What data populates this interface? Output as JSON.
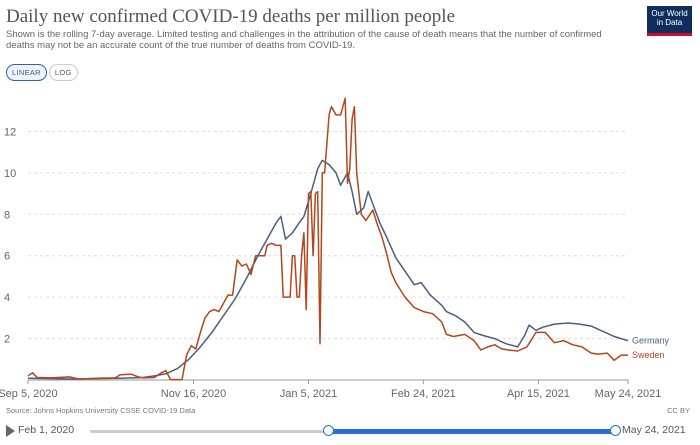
{
  "header": {
    "title": "Daily new confirmed COVID-19 deaths per million people",
    "subtitle": "Shown is the rolling 7-day average. Limited testing and challenges in the attribution of the cause of death means that the number of confirmed deaths may not be an accurate count of the true number of deaths from COVID-19.",
    "logo_line1": "Our World",
    "logo_line2": "in Data"
  },
  "controls": {
    "linear_label": "LINEAR",
    "log_label": "LOG"
  },
  "footer": {
    "source": "Source: Johns Hopkins University CSSE COVID-19 Data",
    "license": "CC BY"
  },
  "timeline": {
    "start_label": "Feb 1, 2020",
    "end_label": "May 24, 2021"
  },
  "colors": {
    "germany": "#4c5e7e",
    "sweden": "#b5451b",
    "grid": "#dddddd"
  },
  "chart_data": {
    "type": "line",
    "title": "Daily new confirmed COVID-19 deaths per million people",
    "xlabel": "",
    "ylabel": "",
    "ylim": [
      0,
      14
    ],
    "yticks": [
      2,
      4,
      6,
      8,
      10,
      12
    ],
    "xticks": [
      {
        "label": "Sep 5, 2020",
        "day": 0
      },
      {
        "label": "Nov 16, 2020",
        "day": 72
      },
      {
        "label": "Jan 5, 2021",
        "day": 122
      },
      {
        "label": "Feb 24, 2021",
        "day": 172
      },
      {
        "label": "Apr 15, 2021",
        "day": 222
      },
      {
        "label": "May 24, 2021",
        "day": 261
      }
    ],
    "xlim": [
      0,
      261
    ],
    "series": [
      {
        "name": "Germany",
        "points": [
          [
            0,
            0.08
          ],
          [
            20,
            0.05
          ],
          [
            40,
            0.08
          ],
          [
            50,
            0.12
          ],
          [
            55,
            0.2
          ],
          [
            60,
            0.3
          ],
          [
            65,
            0.55
          ],
          [
            70,
            1.0
          ],
          [
            75,
            1.6
          ],
          [
            80,
            2.3
          ],
          [
            85,
            3.1
          ],
          [
            90,
            3.9
          ],
          [
            95,
            4.9
          ],
          [
            100,
            6.0
          ],
          [
            105,
            7.0
          ],
          [
            108,
            7.6
          ],
          [
            110,
            7.9
          ],
          [
            112,
            6.8
          ],
          [
            115,
            7.1
          ],
          [
            118,
            7.6
          ],
          [
            120,
            7.9
          ],
          [
            123,
            9.0
          ],
          [
            126,
            10.2
          ],
          [
            128,
            10.6
          ],
          [
            131,
            10.4
          ],
          [
            134,
            10.0
          ],
          [
            136,
            9.4
          ],
          [
            139,
            10.0
          ],
          [
            141,
            9.1
          ],
          [
            143,
            8.0
          ],
          [
            146,
            8.3
          ],
          [
            148,
            9.1
          ],
          [
            150,
            8.5
          ],
          [
            153,
            7.6
          ],
          [
            156,
            6.9
          ],
          [
            160,
            5.9
          ],
          [
            165,
            5.1
          ],
          [
            168,
            4.6
          ],
          [
            171,
            4.7
          ],
          [
            175,
            4.1
          ],
          [
            180,
            3.6
          ],
          [
            182,
            3.3
          ],
          [
            186,
            3.1
          ],
          [
            190,
            2.8
          ],
          [
            194,
            2.3
          ],
          [
            198,
            2.15
          ],
          [
            203,
            2.0
          ],
          [
            208,
            1.75
          ],
          [
            213,
            1.6
          ],
          [
            216,
            2.15
          ],
          [
            218,
            2.65
          ],
          [
            221,
            2.4
          ],
          [
            224,
            2.55
          ],
          [
            229,
            2.7
          ],
          [
            235,
            2.75
          ],
          [
            240,
            2.7
          ],
          [
            245,
            2.6
          ],
          [
            250,
            2.35
          ],
          [
            255,
            2.1
          ],
          [
            258,
            2.0
          ],
          [
            261,
            1.9
          ]
        ],
        "end_label": "Germany"
      },
      {
        "name": "Sweden",
        "points": [
          [
            0,
            0.2
          ],
          [
            2,
            0.35
          ],
          [
            4,
            0.12
          ],
          [
            10,
            0.1
          ],
          [
            18,
            0.15
          ],
          [
            22,
            0.05
          ],
          [
            30,
            0.08
          ],
          [
            38,
            0.1
          ],
          [
            40,
            0.25
          ],
          [
            45,
            0.28
          ],
          [
            48,
            0.15
          ],
          [
            50,
            0.1
          ],
          [
            55,
            0.12
          ],
          [
            58,
            0.35
          ],
          [
            60,
            0.45
          ],
          [
            62,
            0.02
          ],
          [
            67,
            0.02
          ],
          [
            69,
            1.2
          ],
          [
            71,
            1.65
          ],
          [
            73,
            1.5
          ],
          [
            75,
            2.3
          ],
          [
            77,
            3.0
          ],
          [
            79,
            3.3
          ],
          [
            81,
            3.4
          ],
          [
            83,
            3.3
          ],
          [
            85,
            3.7
          ],
          [
            87,
            4.1
          ],
          [
            89,
            4.1
          ],
          [
            91,
            5.8
          ],
          [
            93,
            5.5
          ],
          [
            95,
            5.6
          ],
          [
            97,
            5.1
          ],
          [
            99,
            6.0
          ],
          [
            101,
            6.0
          ],
          [
            103,
            6.0
          ],
          [
            104,
            6.5
          ],
          [
            106,
            6.6
          ],
          [
            108,
            6.5
          ],
          [
            110,
            6.5
          ],
          [
            111,
            4.0
          ],
          [
            113,
            4.0
          ],
          [
            114,
            4.0
          ],
          [
            115,
            6.0
          ],
          [
            116,
            6.0
          ],
          [
            117,
            4.0
          ],
          [
            118,
            4.0
          ],
          [
            119,
            6.0
          ],
          [
            120,
            7.1
          ],
          [
            121,
            3.4
          ],
          [
            122,
            9.0
          ],
          [
            123,
            9.1
          ],
          [
            124,
            6.0
          ],
          [
            125,
            9.0
          ],
          [
            126,
            9.1
          ],
          [
            127,
            1.75
          ],
          [
            128,
            10.0
          ],
          [
            129,
            10.0
          ],
          [
            131,
            12.8
          ],
          [
            132,
            13.2
          ],
          [
            134,
            12.8
          ],
          [
            136,
            12.8
          ],
          [
            138,
            13.6
          ],
          [
            139,
            9.5
          ],
          [
            140,
            10.2
          ],
          [
            141,
            12.6
          ],
          [
            142,
            13.2
          ],
          [
            143,
            10.0
          ],
          [
            144,
            9.0
          ],
          [
            145,
            8.0
          ],
          [
            147,
            7.7
          ],
          [
            150,
            8.2
          ],
          [
            152,
            7.5
          ],
          [
            154,
            6.9
          ],
          [
            156,
            6.1
          ],
          [
            158,
            5.2
          ],
          [
            160,
            4.7
          ],
          [
            164,
            4.0
          ],
          [
            168,
            3.5
          ],
          [
            172,
            3.3
          ],
          [
            176,
            3.2
          ],
          [
            180,
            2.8
          ],
          [
            182,
            2.2
          ],
          [
            185,
            2.1
          ],
          [
            190,
            2.2
          ],
          [
            194,
            1.9
          ],
          [
            197,
            1.45
          ],
          [
            200,
            1.6
          ],
          [
            203,
            1.7
          ],
          [
            206,
            1.5
          ],
          [
            209,
            1.45
          ],
          [
            213,
            1.4
          ],
          [
            217,
            1.6
          ],
          [
            221,
            2.3
          ],
          [
            225,
            2.3
          ],
          [
            229,
            1.8
          ],
          [
            233,
            1.9
          ],
          [
            237,
            1.7
          ],
          [
            241,
            1.6
          ],
          [
            245,
            1.3
          ],
          [
            248,
            1.25
          ],
          [
            252,
            1.3
          ],
          [
            255,
            0.95
          ],
          [
            258,
            1.2
          ],
          [
            261,
            1.2
          ]
        ],
        "end_label": "Sweden"
      }
    ]
  }
}
